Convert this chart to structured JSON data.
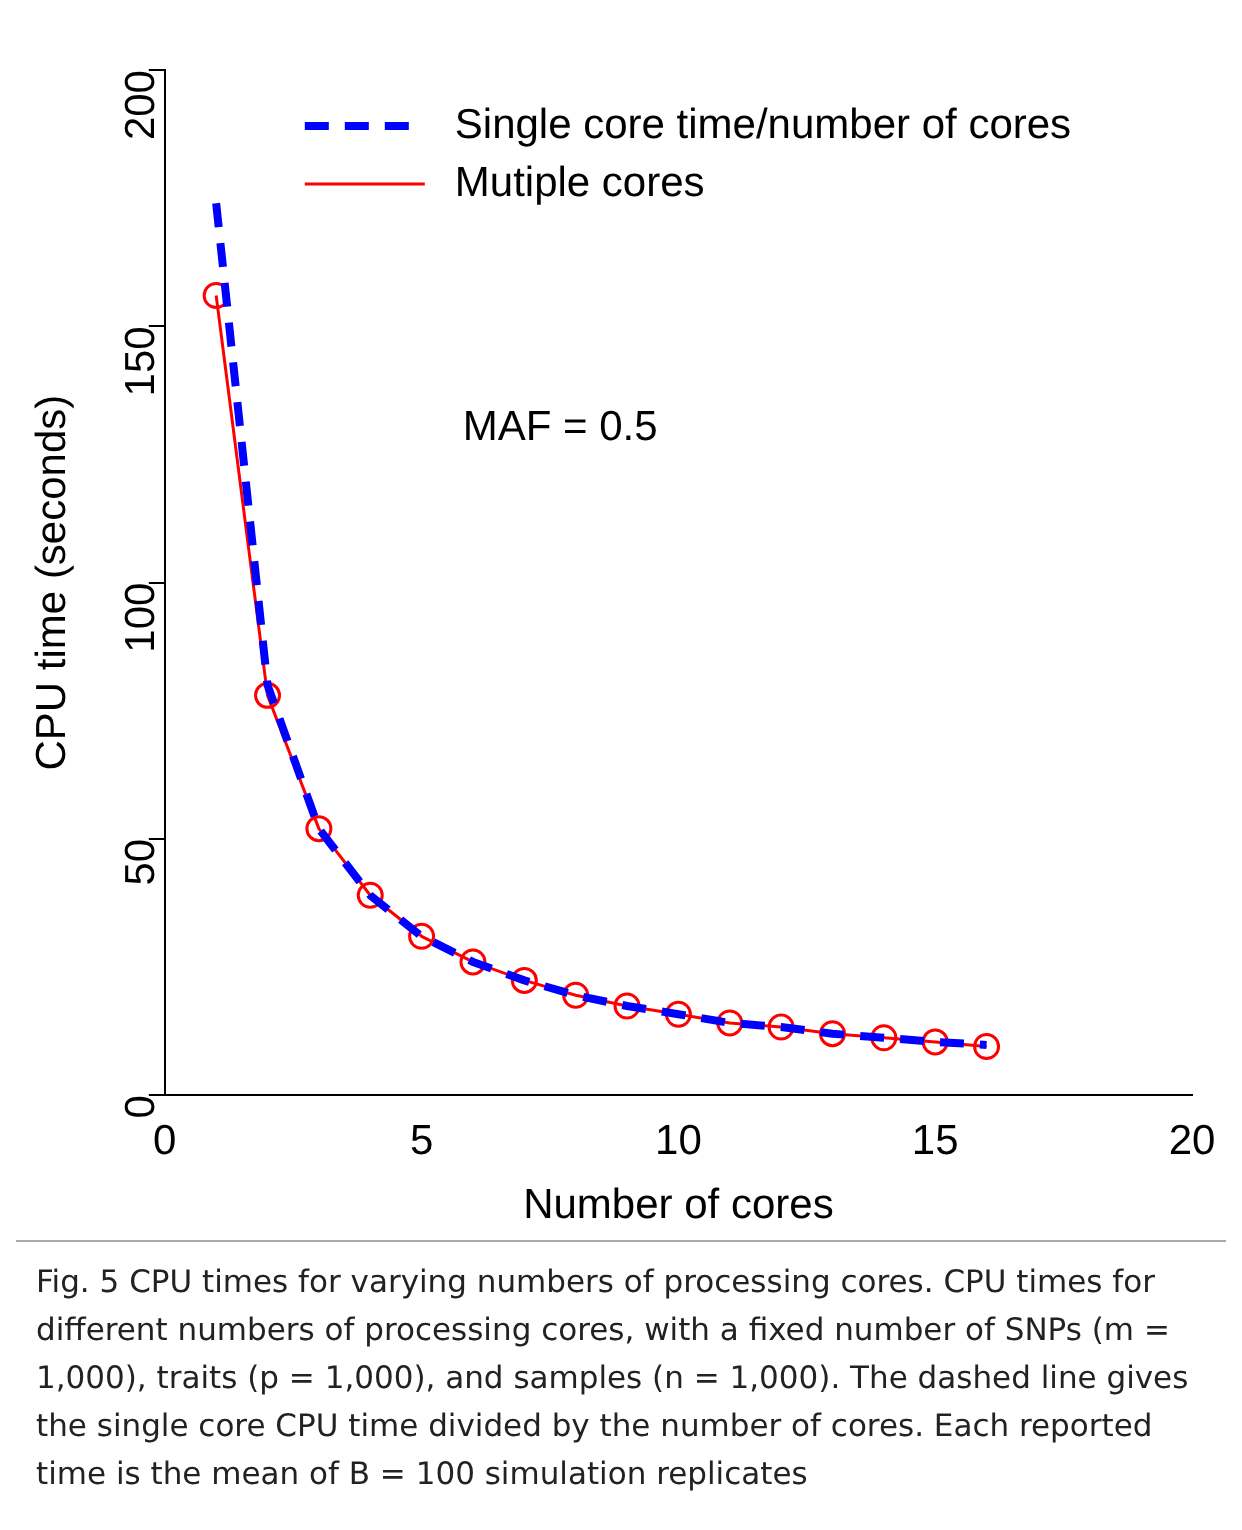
{
  "chart_data": {
    "type": "line",
    "xlabel": "Number of cores",
    "ylabel": "CPU time (seconds)",
    "xlim": [
      0,
      20
    ],
    "xticks": [
      0,
      5,
      10,
      15,
      20
    ],
    "ylim": [
      0,
      200
    ],
    "yticks": [
      0,
      50,
      100,
      150,
      200
    ],
    "grid": false,
    "legend": "top right",
    "series": [
      {
        "name": "Single core time/number of cores",
        "color": "#0000ff",
        "line_style": "dashed",
        "marker": "none",
        "x": [
          1,
          2,
          3,
          4,
          5,
          6,
          7,
          8,
          9,
          10,
          11,
          12,
          13,
          14,
          15,
          16
        ],
        "values": [
          174,
          80,
          52,
          39,
          31,
          26,
          22.4,
          19.5,
          17.4,
          15.8,
          14.1,
          13.3,
          12,
          11.2,
          10.4,
          9.8
        ]
      },
      {
        "name": "Mutiple cores",
        "color": "#ff0000",
        "line_style": "solid",
        "marker": "circle",
        "x": [
          1,
          2,
          3,
          4,
          5,
          6,
          7,
          8,
          9,
          10,
          11,
          12,
          13,
          14,
          15,
          16
        ],
        "values": [
          156,
          78,
          52,
          39,
          31,
          26,
          22.4,
          19.5,
          17.4,
          15.8,
          14.1,
          13.3,
          12,
          11.2,
          10.4,
          9.5
        ]
      }
    ],
    "annotations": [
      "MAF = 0.5",
      "Fig. 5 CPU times for varying numbers of processing cores. CPU times for different numbers of processing cores, with a fixed number of SNPs (m = 1,000), traits (p = 1,000), and samples (n = 1,000). The dashed line gives the single core CPU time divided by the number of cores. Each reported time is the mean of B = 100 simulation replicates"
    ]
  }
}
